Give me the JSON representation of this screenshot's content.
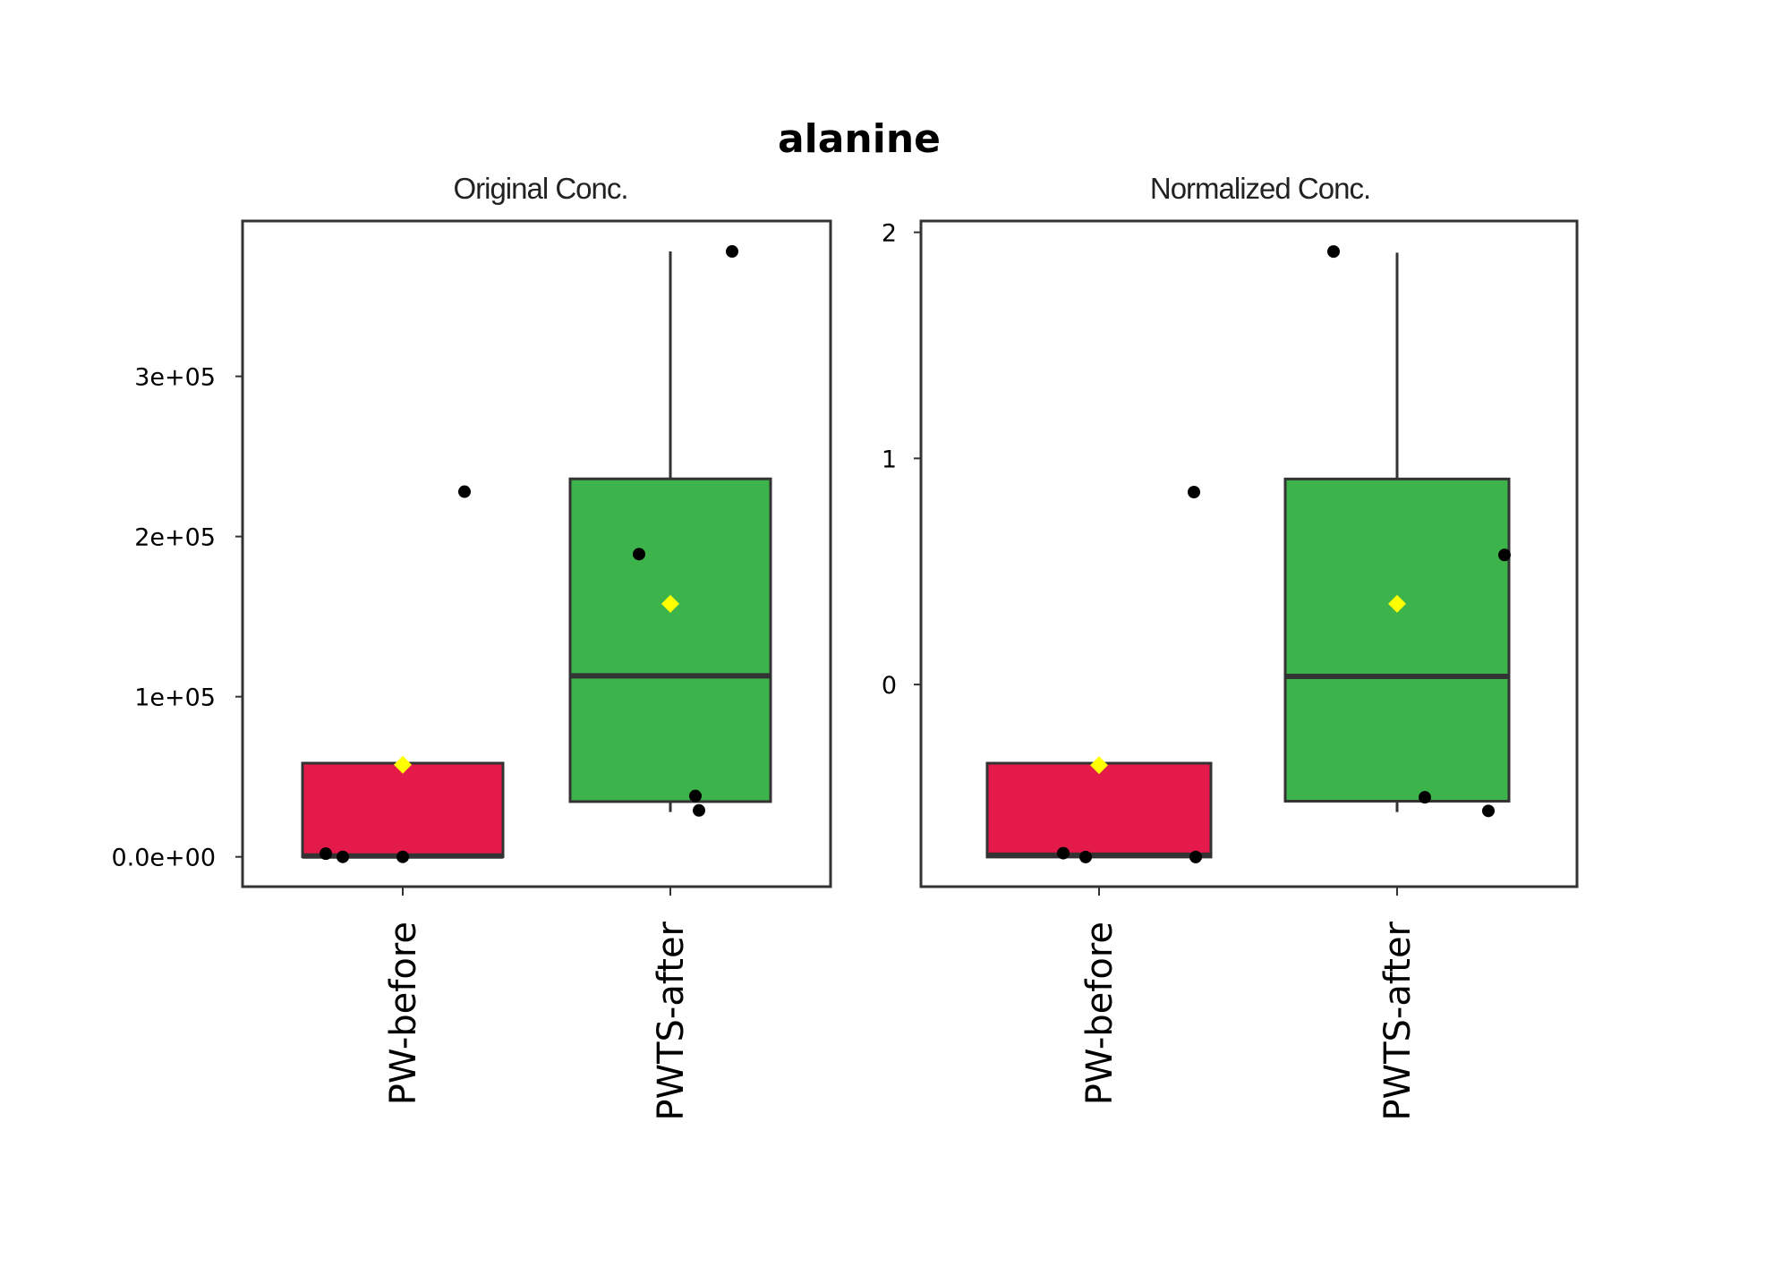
{
  "title": "alanine",
  "chart_data": [
    {
      "type": "box",
      "title": "Original Conc.",
      "categories": [
        "PW-before",
        "PWTS-after"
      ],
      "ylim": [
        -18600,
        397000
      ],
      "yticks": [
        0,
        100000,
        200000,
        300000
      ],
      "ytick_labels": [
        "0.0e+00",
        "1e+05",
        "2e+05",
        "3e+05"
      ],
      "grid": false,
      "colors": {
        "PW-before": "#e31a4a",
        "PWTS-after": "#3cb44b",
        "mean": "#ffff00",
        "points": "#000000"
      },
      "boxes": [
        {
          "category": "PW-before",
          "q1": 0,
          "median": 500,
          "q3": 58500,
          "whisker_low": 0,
          "whisker_high": 58500,
          "mean": 57500,
          "points": [
            2000,
            0,
            0,
            228000
          ]
        },
        {
          "category": "PWTS-after",
          "q1": 34500,
          "median": 113000,
          "q3": 236000,
          "whisker_low": 28000,
          "whisker_high": 378000,
          "mean": 158000,
          "points": [
            378000,
            189000,
            38000,
            29000
          ]
        }
      ]
    },
    {
      "type": "box",
      "title": "Normalized Conc.",
      "categories": [
        "PW-before",
        "PWTS-after"
      ],
      "ylim": [
        -0.894,
        2.05
      ],
      "yticks": [
        0,
        1,
        2
      ],
      "ytick_labels": [
        "0",
        "1",
        "2"
      ],
      "grid": false,
      "colors": {
        "PW-before": "#e31a4a",
        "PWTS-after": "#3cb44b",
        "mean": "#ffff00",
        "points": "#000000"
      },
      "boxes": [
        {
          "category": "PW-before",
          "q1": -0.763,
          "median": -0.755,
          "q3": -0.348,
          "whisker_low": -0.763,
          "whisker_high": -0.348,
          "mean": -0.357,
          "points": [
            -0.746,
            -0.763,
            -0.763,
            0.851
          ]
        },
        {
          "category": "PWTS-after",
          "q1": -0.516,
          "median": 0.036,
          "q3": 0.909,
          "whisker_low": -0.564,
          "whisker_high": 1.91,
          "mean": 0.357,
          "points": [
            1.915,
            0.573,
            -0.499,
            -0.559
          ]
        }
      ]
    }
  ]
}
